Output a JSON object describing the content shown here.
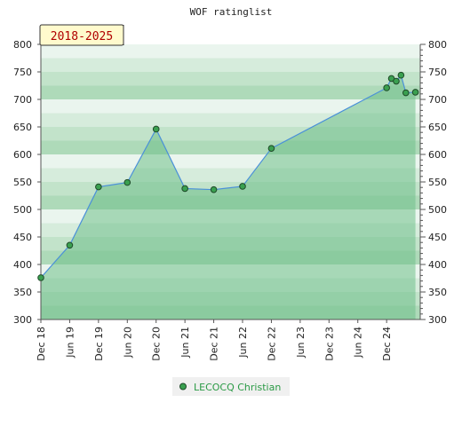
{
  "chart_data": {
    "type": "area",
    "title": "WOF ratinglist",
    "badge": "2018-2025",
    "xlabel": "",
    "ylabel": "",
    "ylim": [
      300,
      800
    ],
    "xlim": [
      "2018-12",
      "2025-07"
    ],
    "y_ticks": [
      "300",
      "350",
      "400",
      "450",
      "500",
      "550",
      "600",
      "650",
      "700",
      "750",
      "800"
    ],
    "x_tick_labels": [
      "Dec 18",
      "Jun 19",
      "Dec 19",
      "Jun 20",
      "Dec 20",
      "Jun 21",
      "Dec 21",
      "Jun 22",
      "Dec 22",
      "Jun 23",
      "Dec 23",
      "Jun 24",
      "Dec 24"
    ],
    "grid": "horizontal bands",
    "legend_position": "bottom-center",
    "colors": {
      "area_fill": "#6fbf8a",
      "area_opacity": 0.55,
      "line": "#4a90d9",
      "marker_fill": "#3aa050",
      "marker_stroke": "#1e4a28",
      "legend_text": "#2a9a45",
      "badge_fill": "#fffacd",
      "badge_text": "#b00000"
    },
    "series": [
      {
        "name": "LECOCQ Christian",
        "x": [
          "2018-12",
          "2019-06",
          "2019-12",
          "2020-06",
          "2020-12",
          "2021-06",
          "2021-12",
          "2022-06",
          "2022-12",
          "2024-12",
          "2025-01",
          "2025-02",
          "2025-03",
          "2025-04",
          "2025-06"
        ],
        "values": [
          376,
          435,
          541,
          549,
          646,
          538,
          536,
          542,
          611,
          721,
          738,
          733,
          744,
          712,
          713
        ]
      }
    ]
  }
}
